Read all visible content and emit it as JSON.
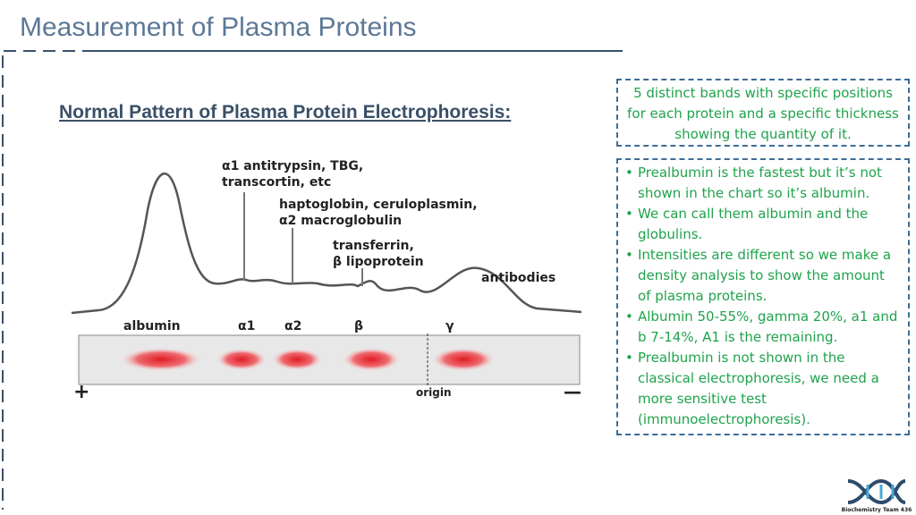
{
  "header": {
    "title": "Measurement of Plasma Proteins"
  },
  "subtitle": "Normal Pattern of Plasma Protein Electrophoresis:",
  "figure": {
    "peak_labels": [
      "α1 antitrypsin, TBG,",
      "transcortin, etc",
      "haptoglobin, ceruloplasmin,",
      "α2 macroglobulin",
      "transferrin,",
      "β lipoprotein",
      "antibodies"
    ],
    "bands": [
      "albumin",
      "α1",
      "α2",
      "β",
      "γ"
    ],
    "anode": "+",
    "origin": "origin",
    "cathode": "—"
  },
  "note": "5 distinct bands with specific positions for each protein and a specific thickness showing the quantity of it.",
  "bullets": [
    "Prealbumin is the fastest but it’s not shown in the chart so it’s albumin.",
    "We can call them albumin and the globulins.",
    "Intensities are different so we make a density analysis to show the amount of plasma proteins.",
    "Albumin 50-55%, gamma 20%, a1 and b 7-14%, A1 is the remaining.",
    "Prealbumin is not shown in the classical electrophoresis, we need a more sensitive test (immunoelectrophoresis)."
  ],
  "logo": {
    "text": "Biochemistry Team 436"
  }
}
